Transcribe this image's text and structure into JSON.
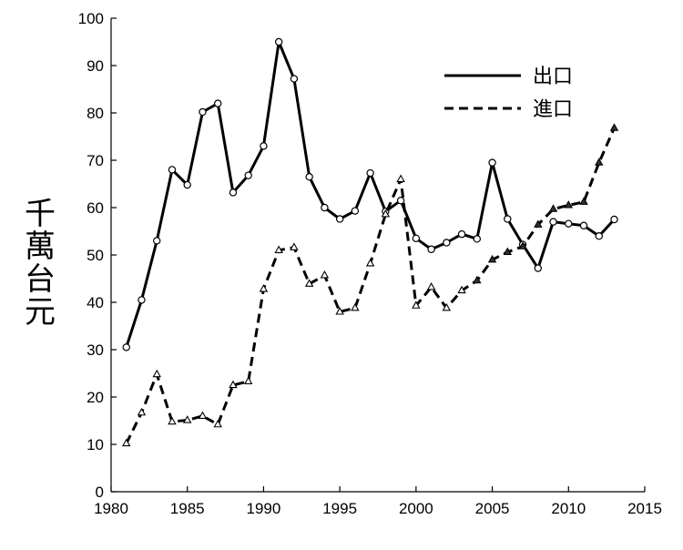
{
  "chart_data": {
    "type": "line",
    "title": "",
    "xlabel": "",
    "ylabel": "千萬台元",
    "xlim": [
      1980,
      2015
    ],
    "ylim": [
      0,
      100
    ],
    "xticks": [
      1980,
      1985,
      1990,
      1995,
      2000,
      2005,
      2010,
      2015
    ],
    "yticks": [
      0,
      10,
      20,
      30,
      40,
      50,
      60,
      70,
      80,
      90,
      100
    ],
    "grid": false,
    "legend": {
      "position": "top-right"
    },
    "x": [
      1981,
      1982,
      1983,
      1984,
      1985,
      1986,
      1987,
      1988,
      1989,
      1990,
      1991,
      1992,
      1993,
      1994,
      1995,
      1996,
      1997,
      1998,
      1999,
      2000,
      2001,
      2002,
      2003,
      2004,
      2005,
      2006,
      2007,
      2008,
      2009,
      2010,
      2011,
      2012,
      2013
    ],
    "series": [
      {
        "name": "出口",
        "style": "solid",
        "marker": "circle",
        "values": [
          30.5,
          40.5,
          53,
          68,
          64.8,
          80.2,
          82,
          63.2,
          66.8,
          73,
          95,
          87.2,
          66.5,
          60,
          57.6,
          59.3,
          67.3,
          59.2,
          61.5,
          53.5,
          51.2,
          52.6,
          54.4,
          53.4,
          69.5,
          57.6,
          52.2,
          47.2,
          57,
          56.6,
          56.2,
          54,
          57.5
        ]
      },
      {
        "name": "進口",
        "style": "dashed",
        "marker": "triangle",
        "values": [
          10.2,
          16.7,
          24.8,
          14.8,
          15.1,
          16,
          14.2,
          22.5,
          23.3,
          42.8,
          51,
          51.6,
          43.9,
          45.7,
          38,
          38.8,
          48.2,
          58.6,
          66,
          39.3,
          43.2,
          38.8,
          42.5,
          44.6,
          49,
          50.6,
          51.8,
          56.4,
          59.7,
          60.5,
          61.2,
          69.5,
          76.8
        ]
      }
    ]
  }
}
